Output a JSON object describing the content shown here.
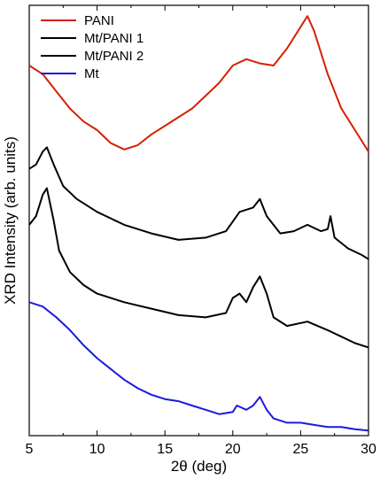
{
  "chart_data": {
    "type": "line",
    "xlabel": "2θ (deg)",
    "ylabel": "XRD Intensity (arb. units)",
    "xlim": [
      5,
      30
    ],
    "ylim": [
      0,
      1
    ],
    "x_ticks": [
      "5",
      "10",
      "15",
      "20",
      "25",
      "30"
    ],
    "y_ticks_shown": false,
    "grid": false,
    "legend_position": "top-left",
    "series": [
      {
        "name": "PANI",
        "color": "#d62000",
        "x": [
          5,
          6,
          7,
          8,
          9,
          10,
          11,
          12,
          13,
          14,
          15,
          16,
          17,
          18,
          19,
          20,
          21,
          22,
          23,
          24,
          25,
          25.5,
          26,
          27,
          28,
          29,
          30
        ],
        "y": [
          0.86,
          0.84,
          0.8,
          0.76,
          0.73,
          0.71,
          0.68,
          0.665,
          0.675,
          0.7,
          0.72,
          0.74,
          0.76,
          0.79,
          0.82,
          0.86,
          0.875,
          0.865,
          0.86,
          0.9,
          0.95,
          0.975,
          0.94,
          0.84,
          0.76,
          0.71,
          0.66
        ]
      },
      {
        "name": "Mt/PANI 1",
        "color": "#000000",
        "x": [
          5,
          5.5,
          6,
          6.3,
          6.8,
          7.5,
          8.5,
          10,
          12,
          14,
          16,
          18,
          19.5,
          20.5,
          21.5,
          22,
          22.5,
          23.5,
          24.5,
          25.5,
          26.5,
          27,
          27.2,
          27.5,
          28.5,
          29.5,
          30
        ],
        "y": [
          0.62,
          0.63,
          0.66,
          0.67,
          0.63,
          0.58,
          0.55,
          0.52,
          0.49,
          0.47,
          0.455,
          0.46,
          0.475,
          0.52,
          0.53,
          0.55,
          0.51,
          0.47,
          0.475,
          0.49,
          0.475,
          0.48,
          0.51,
          0.46,
          0.435,
          0.42,
          0.41
        ]
      },
      {
        "name": "Mt/PANI 2",
        "color": "#000000",
        "x": [
          5,
          5.5,
          6,
          6.3,
          6.8,
          7.2,
          8,
          9,
          10,
          12,
          14,
          16,
          18,
          19.5,
          20,
          20.5,
          21,
          21.5,
          22,
          22.5,
          23,
          24,
          25.5,
          27,
          28,
          29,
          30
        ],
        "y": [
          0.49,
          0.51,
          0.56,
          0.575,
          0.5,
          0.43,
          0.38,
          0.35,
          0.33,
          0.31,
          0.295,
          0.28,
          0.275,
          0.285,
          0.32,
          0.33,
          0.31,
          0.345,
          0.37,
          0.33,
          0.275,
          0.255,
          0.265,
          0.245,
          0.23,
          0.215,
          0.205
        ]
      },
      {
        "name": "Mt",
        "color": "#1a1adf",
        "x": [
          5,
          6,
          7,
          8,
          9,
          10,
          11,
          12,
          13,
          14,
          15,
          16,
          17,
          18,
          19,
          20,
          20.3,
          21,
          21.5,
          22,
          22.5,
          23,
          24,
          25,
          26,
          27,
          28,
          29,
          30
        ],
        "y": [
          0.31,
          0.3,
          0.275,
          0.245,
          0.21,
          0.18,
          0.155,
          0.13,
          0.11,
          0.095,
          0.085,
          0.08,
          0.07,
          0.06,
          0.05,
          0.055,
          0.07,
          0.06,
          0.07,
          0.09,
          0.06,
          0.04,
          0.03,
          0.03,
          0.025,
          0.02,
          0.02,
          0.015,
          0.012
        ]
      }
    ]
  }
}
